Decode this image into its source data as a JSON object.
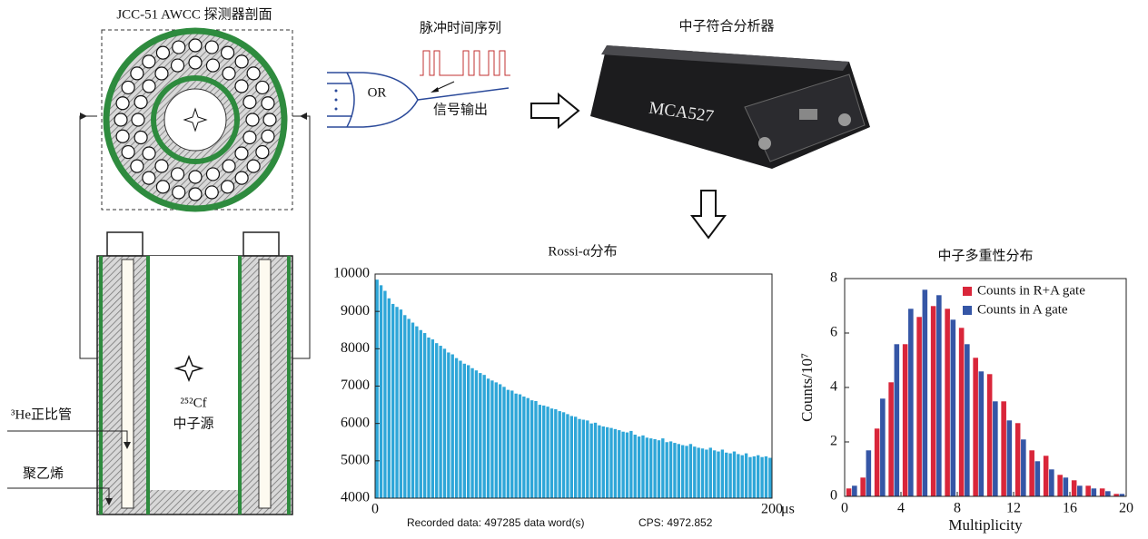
{
  "diagram": {
    "detector_title": "JCC-51 AWCC 探测器剖面",
    "pulse_label": "脉冲时间序列",
    "gate_label": "OR",
    "output_label": "信号输出",
    "analyzer_title": "中子符合分析器",
    "device_label": "MCA527",
    "tube_label": "³He正比管",
    "moderator_label": "聚乙烯",
    "source_isotope": "²⁵²Cf",
    "source_label": "中子源"
  },
  "chart_data": [
    {
      "type": "histogram",
      "title": "Rossi-α分布",
      "color": "#2ea6d8",
      "x_unit": "μs",
      "bins": [
        0,
        2,
        4,
        6,
        8,
        10,
        12,
        14,
        16,
        18,
        20,
        22,
        24,
        26,
        28,
        30,
        32,
        34,
        36,
        38,
        40,
        42,
        44,
        46,
        48,
        50,
        52,
        54,
        56,
        58,
        60,
        62,
        64,
        66,
        68,
        70,
        72,
        74,
        76,
        78,
        80,
        82,
        84,
        86,
        88,
        90,
        92,
        94,
        96,
        98,
        100,
        102,
        104,
        106,
        108,
        110,
        112,
        114,
        116,
        118,
        120,
        122,
        124,
        126,
        128,
        130,
        132,
        134,
        136,
        138,
        140,
        142,
        144,
        146,
        148,
        150,
        152,
        154,
        156,
        158,
        160,
        162,
        164,
        166,
        168,
        170,
        172,
        174,
        176,
        178,
        180,
        182,
        184,
        186,
        188,
        190,
        192,
        194,
        196,
        198,
        200
      ],
      "values": [
        9850,
        9700,
        9550,
        9350,
        9200,
        9120,
        9050,
        8900,
        8800,
        8700,
        8600,
        8500,
        8420,
        8300,
        8250,
        8150,
        8080,
        8000,
        7900,
        7850,
        7750,
        7680,
        7600,
        7560,
        7480,
        7420,
        7350,
        7300,
        7200,
        7150,
        7100,
        7050,
        6980,
        6900,
        6880,
        6800,
        6780,
        6720,
        6680,
        6620,
        6600,
        6500,
        6480,
        6450,
        6400,
        6380,
        6330,
        6300,
        6250,
        6200,
        6180,
        6120,
        6100,
        6080,
        6000,
        6020,
        5950,
        5920,
        5900,
        5880,
        5850,
        5820,
        5780,
        5760,
        5800,
        5700,
        5650,
        5680,
        5620,
        5600,
        5580,
        5550,
        5600,
        5500,
        5520,
        5480,
        5450,
        5420,
        5400,
        5450,
        5380,
        5350,
        5330,
        5300,
        5350,
        5280,
        5250,
        5300,
        5220,
        5200,
        5250,
        5180,
        5150,
        5200,
        5100,
        5120,
        5150,
        5100,
        5120,
        5080
      ],
      "xlim": [
        0,
        200
      ],
      "xticks": [
        0,
        200
      ],
      "ylim": [
        4000,
        10000
      ],
      "yticks": [
        4000,
        5000,
        6000,
        7000,
        8000,
        9000,
        10000
      ],
      "annotations": [
        "Recorded data: 497285  data word(s)",
        "CPS: 4972.852"
      ]
    },
    {
      "type": "bar",
      "title": "中子多重性分布",
      "x_label": "Multiplicity",
      "y_label": "Counts/10⁷",
      "x": [
        0,
        1,
        2,
        3,
        4,
        5,
        6,
        7,
        8,
        9,
        10,
        11,
        12,
        13,
        14,
        15,
        16,
        17,
        18,
        19
      ],
      "series": [
        {
          "name": "Counts in R+A gate",
          "color": "#d9263a",
          "values": [
            0.3,
            0.7,
            2.5,
            4.2,
            5.6,
            6.6,
            7.0,
            6.9,
            6.2,
            5.1,
            4.5,
            3.5,
            2.7,
            1.7,
            1.5,
            0.8,
            0.6,
            0.4,
            0.3,
            0.1
          ]
        },
        {
          "name": "Counts in A gate",
          "color": "#3556a6",
          "values": [
            0.4,
            1.7,
            3.6,
            5.6,
            6.9,
            7.6,
            7.4,
            6.5,
            5.6,
            4.6,
            3.5,
            2.8,
            2.1,
            1.3,
            1.0,
            0.7,
            0.4,
            0.3,
            0.2,
            0.1
          ]
        }
      ],
      "xlim": [
        0,
        20
      ],
      "xticks": [
        0,
        4,
        8,
        12,
        16,
        20
      ],
      "ylim": [
        0,
        8
      ],
      "yticks": [
        0,
        2,
        4,
        6,
        8
      ],
      "legend": "upper right"
    }
  ]
}
